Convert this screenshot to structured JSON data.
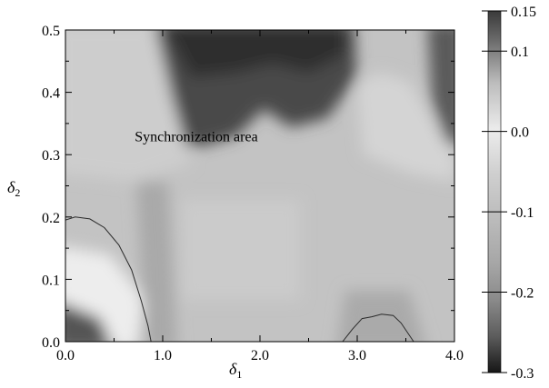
{
  "chart_data": {
    "type": "heatmap",
    "title": "",
    "xlabel": "δ",
    "xlabel_sub": "1",
    "ylabel": "δ",
    "ylabel_sub": "2",
    "xlim": [
      0.0,
      4.0
    ],
    "ylim": [
      0.0,
      0.5
    ],
    "x_ticks": [
      {
        "value": 0.0,
        "label": "0.0"
      },
      {
        "value": 1.0,
        "label": "1.0"
      },
      {
        "value": 2.0,
        "label": "2.0"
      },
      {
        "value": 3.0,
        "label": "3.0"
      },
      {
        "value": 4.0,
        "label": "4.0"
      }
    ],
    "y_ticks": [
      {
        "value": 0.0,
        "label": "0.0"
      },
      {
        "value": 0.1,
        "label": "0.1"
      },
      {
        "value": 0.2,
        "label": "0.2"
      },
      {
        "value": 0.3,
        "label": "0.3"
      },
      {
        "value": 0.4,
        "label": "0.4"
      },
      {
        "value": 0.5,
        "label": "0.5"
      }
    ],
    "colorbar": {
      "range": [
        -0.3,
        0.15
      ],
      "ticks": [
        {
          "value": 0.15,
          "label": "0.15"
        },
        {
          "value": 0.1,
          "label": "0.1"
        },
        {
          "value": 0.0,
          "label": "0.0"
        },
        {
          "value": -0.1,
          "label": "-0.1"
        },
        {
          "value": -0.2,
          "label": "-0.2"
        },
        {
          "value": -0.3,
          "label": "-0.3"
        }
      ],
      "colormap": "grayscale (dark at both extremes, light near 0.0)"
    },
    "annotations": [
      {
        "text": "Synchronization area",
        "x": 1.6,
        "y": 0.33
      }
    ],
    "contours": [
      {
        "name": "left",
        "points": [
          [
            0.0,
            0.195
          ],
          [
            0.1,
            0.2
          ],
          [
            0.25,
            0.197
          ],
          [
            0.4,
            0.183
          ],
          [
            0.55,
            0.155
          ],
          [
            0.68,
            0.115
          ],
          [
            0.78,
            0.065
          ],
          [
            0.85,
            0.025
          ],
          [
            0.88,
            0.0
          ]
        ]
      },
      {
        "name": "right",
        "points": [
          [
            2.85,
            0.0
          ],
          [
            2.95,
            0.02
          ],
          [
            3.05,
            0.037
          ],
          [
            3.15,
            0.04
          ],
          [
            3.25,
            0.044
          ],
          [
            3.37,
            0.042
          ],
          [
            3.45,
            0.03
          ],
          [
            3.52,
            0.014
          ],
          [
            3.58,
            0.0
          ]
        ]
      }
    ],
    "grid": false
  }
}
